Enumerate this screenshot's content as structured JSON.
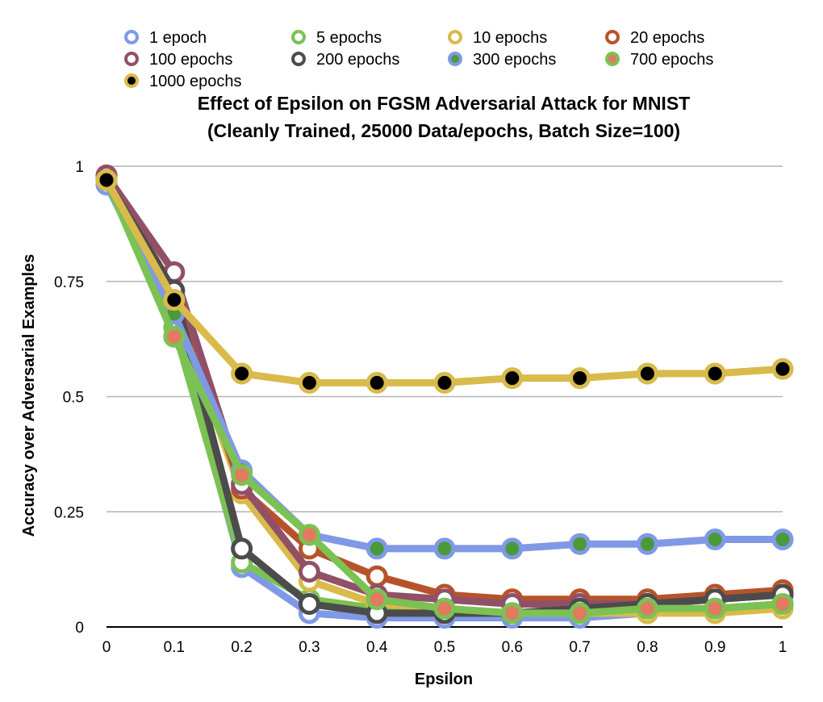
{
  "chart_data": {
    "type": "line",
    "title_line1": "Effect of Epsilon on FGSM Adversarial Attack for MNIST",
    "title_line2": "(Cleanly Trained, 25000 Data/epochs, Batch Size=100)",
    "xlabel": "Epsilon",
    "ylabel": "Accuracy over Adversarial Examples",
    "x": [
      0,
      0.1,
      0.2,
      0.3,
      0.4,
      0.5,
      0.6,
      0.7,
      0.8,
      0.9,
      1
    ],
    "x_tick_labels": [
      "0",
      "0.1",
      "0.2",
      "0.3",
      "0.4",
      "0.5",
      "0.6",
      "0.7",
      "0.8",
      "0.9",
      "1"
    ],
    "y_ticks": [
      0,
      0.25,
      0.5,
      0.75,
      1
    ],
    "y_tick_labels": [
      "0",
      "0.25",
      "0.5",
      "0.75",
      "1"
    ],
    "ylim": [
      0,
      1
    ],
    "xlim": [
      0,
      1
    ],
    "grid": true,
    "legend_position": "top",
    "series": [
      {
        "name": "1 epoch",
        "color": "#8099e6",
        "marker": "#ffffff",
        "values": [
          0.96,
          0.67,
          0.13,
          0.03,
          0.02,
          0.02,
          0.02,
          0.02,
          0.03,
          0.04,
          0.05
        ]
      },
      {
        "name": "5 epochs",
        "color": "#7cc153",
        "marker": "#ffffff",
        "values": [
          0.97,
          0.65,
          0.14,
          0.06,
          0.04,
          0.03,
          0.03,
          0.03,
          0.03,
          0.04,
          0.05
        ]
      },
      {
        "name": "10 epochs",
        "color": "#d8bb4a",
        "marker": "#ffffff",
        "values": [
          0.97,
          0.7,
          0.29,
          0.1,
          0.05,
          0.04,
          0.03,
          0.03,
          0.03,
          0.03,
          0.04
        ]
      },
      {
        "name": "20 epochs",
        "color": "#b7532b",
        "marker": "#ffffff",
        "values": [
          0.98,
          0.73,
          0.3,
          0.17,
          0.11,
          0.07,
          0.06,
          0.06,
          0.06,
          0.07,
          0.08
        ]
      },
      {
        "name": "100 epochs",
        "color": "#915068",
        "marker": "#ffffff",
        "values": [
          0.98,
          0.77,
          0.31,
          0.12,
          0.07,
          0.06,
          0.05,
          0.05,
          0.05,
          0.06,
          0.07
        ]
      },
      {
        "name": "200 epochs",
        "color": "#4c4c4c",
        "marker": "#ffffff",
        "values": [
          0.97,
          0.73,
          0.17,
          0.05,
          0.03,
          0.03,
          0.03,
          0.04,
          0.05,
          0.06,
          0.07
        ]
      },
      {
        "name": "300 epochs",
        "color": "#8099e6",
        "marker": "#4a9a3a",
        "values": [
          0.97,
          0.68,
          0.34,
          0.2,
          0.17,
          0.17,
          0.17,
          0.18,
          0.18,
          0.19,
          0.19
        ]
      },
      {
        "name": "700 epochs",
        "color": "#7cc153",
        "marker": "#e27a60",
        "values": [
          0.97,
          0.63,
          0.33,
          0.2,
          0.06,
          0.04,
          0.03,
          0.03,
          0.04,
          0.04,
          0.05
        ]
      },
      {
        "name": "1000 epochs",
        "color": "#d8bb4a",
        "marker": "#000000",
        "values": [
          0.97,
          0.71,
          0.55,
          0.53,
          0.53,
          0.53,
          0.54,
          0.54,
          0.55,
          0.55,
          0.56
        ]
      }
    ]
  }
}
